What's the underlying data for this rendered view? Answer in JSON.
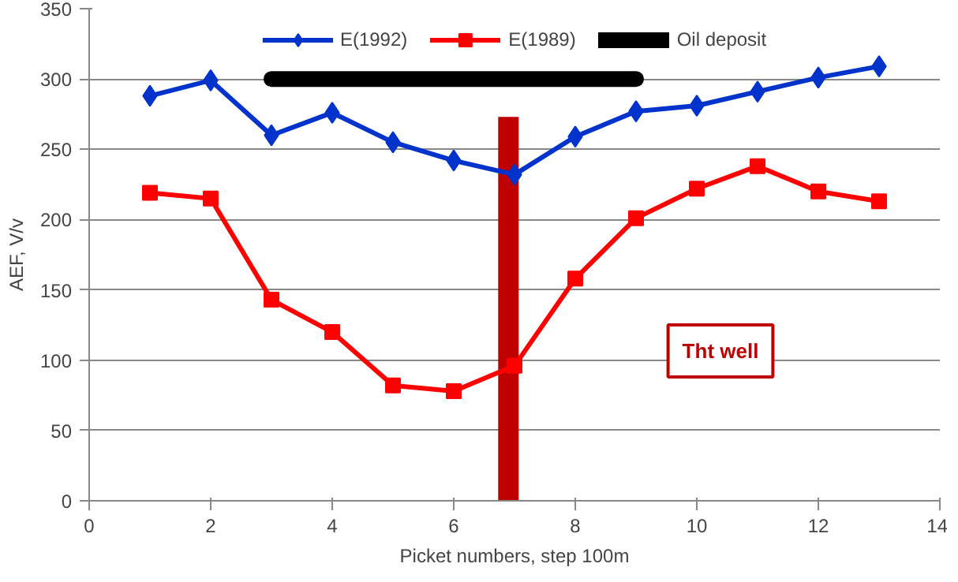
{
  "chart_data": {
    "type": "line",
    "xlabel": "Picket numbers, step 100m",
    "ylabel": "AEF, V/v",
    "x": [
      1,
      2,
      3,
      4,
      5,
      6,
      7,
      8,
      9,
      10,
      11,
      12,
      13
    ],
    "series": [
      {
        "color": "#c00000",
        "marker": "none",
        "x": [
          6.9,
          6.9
        ],
        "values": [
          0,
          273
        ]
      },
      {
        "name": "E(1992)",
        "color": "#0033cc",
        "marker": "diamond",
        "values": [
          288,
          299,
          260,
          276,
          255,
          242,
          232,
          259,
          277,
          281,
          291,
          301,
          309
        ]
      },
      {
        "name": "E(1989)",
        "color": "#ff0000",
        "marker": "square",
        "values": [
          219,
          215,
          143,
          120,
          82,
          78,
          96,
          158,
          201,
          222,
          238,
          220,
          213
        ]
      },
      {
        "name": "Oil deposit",
        "color": "#000000",
        "marker": "none",
        "x": [
          3,
          9
        ],
        "values": [
          300,
          300
        ]
      }
    ],
    "annotations": [
      "Tht well"
    ],
    "xlim": [
      0,
      14
    ],
    "xticks": [
      0,
      2,
      4,
      6,
      8,
      10,
      12,
      14
    ],
    "ylim": [
      0,
      350
    ],
    "yticks": [
      0,
      50,
      100,
      150,
      200,
      250,
      300,
      350
    ],
    "grid": "y",
    "legend": "top"
  }
}
